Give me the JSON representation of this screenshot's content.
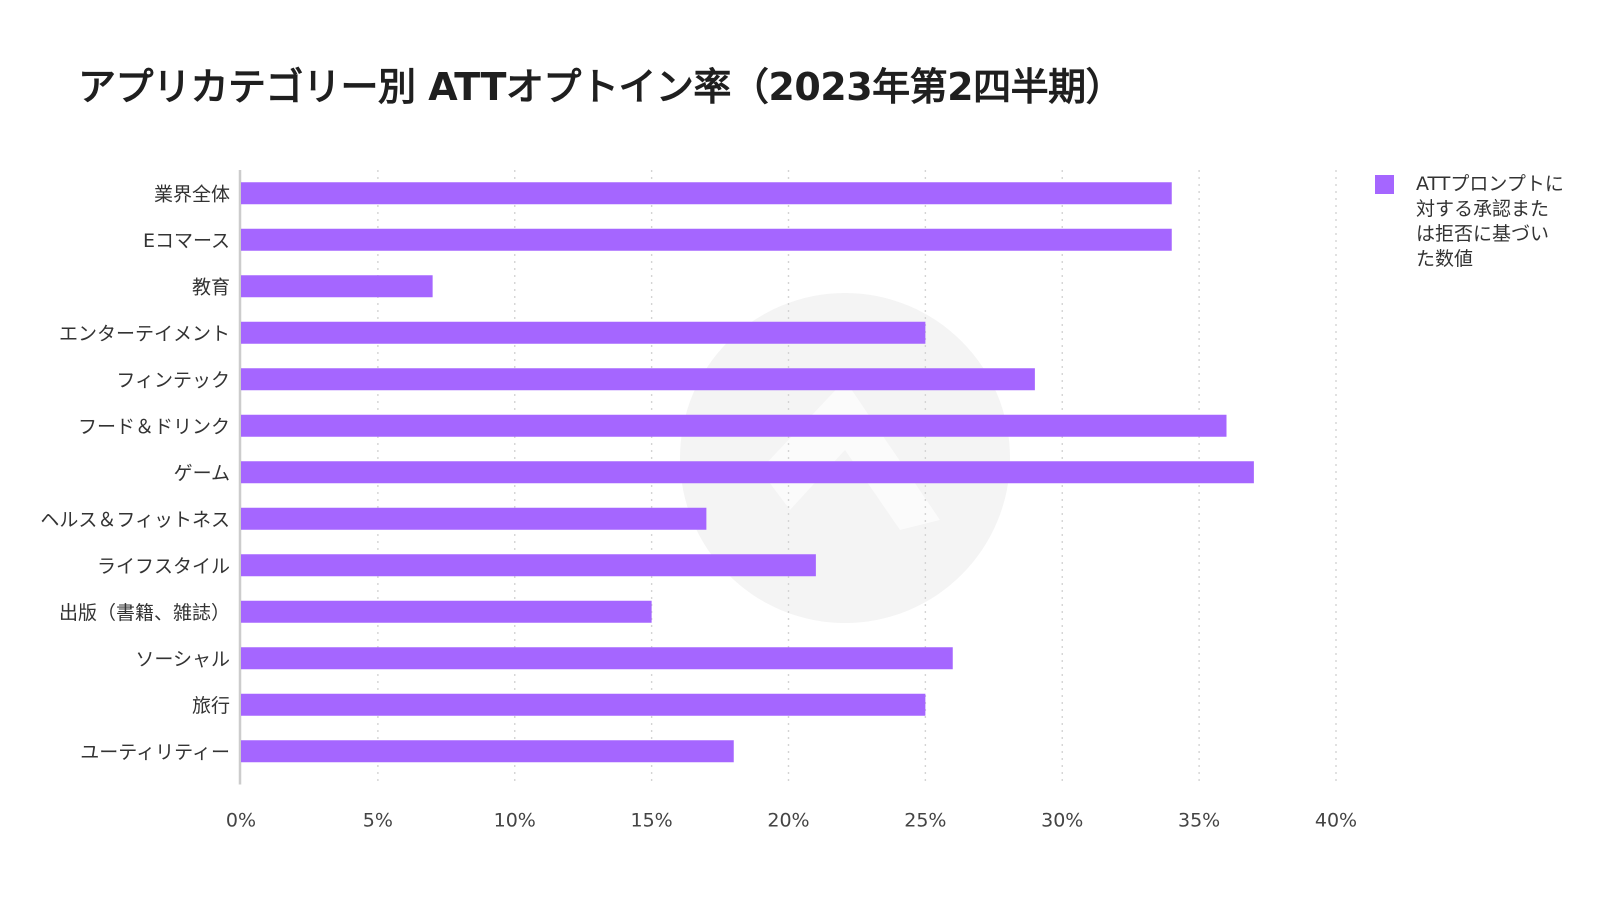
{
  "chart_data": {
    "type": "bar",
    "orientation": "horizontal",
    "title": "アプリカテゴリー別 ATTオプトイン率（2023年第2四半期）",
    "categories": [
      "業界全体",
      "Eコマース",
      "教育",
      "エンターテイメント",
      "フィンテック",
      "フード＆ドリンク",
      "ゲーム",
      "ヘルス＆フィットネス",
      "ライフスタイル",
      "出版（書籍、雑誌）",
      "ソーシャル",
      "旅行",
      "ユーティリティー"
    ],
    "series": [
      {
        "name": "ATTプロンプトに対する承認または拒否に基づいた数値",
        "values": [
          34,
          34,
          7,
          25,
          29,
          36,
          37,
          17,
          21,
          15,
          26,
          25,
          18
        ]
      }
    ],
    "xlim": [
      0,
      40
    ],
    "xticks": [
      "0%",
      "5%",
      "10%",
      "15%",
      "20%",
      "25%",
      "30%",
      "35%",
      "40%"
    ],
    "xlabel": "",
    "ylabel": "",
    "grid": "vertical dotted",
    "legend_position": "top-right",
    "colors": {
      "bar": "#A566FF",
      "grid": "#d4d4d4",
      "axis": "#cccccc",
      "watermark": "#f4f4f4"
    }
  }
}
